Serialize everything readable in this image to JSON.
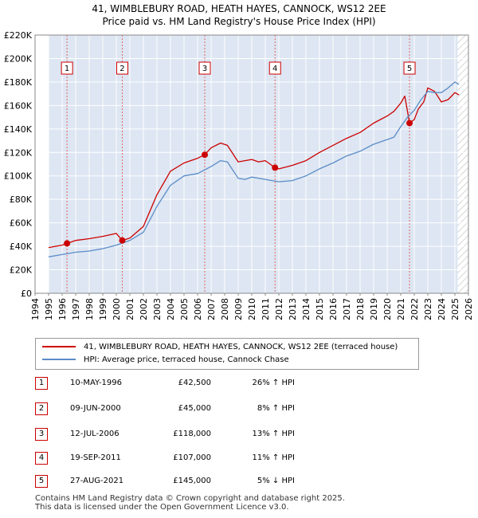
{
  "title": "41, WIMBLEBURY ROAD, HEATH HAYES, CANNOCK, WS12 2EE",
  "subtitle": "Price paid vs. HM Land Registry's House Price Index (HPI)",
  "colors": {
    "property": "#cc0000",
    "hpi": "#5b8cc8",
    "shade": "#dde6f2",
    "marker_line": "#e06666",
    "marker_box": "#cc0000"
  },
  "chart_data": {
    "type": "line",
    "ylim": [
      0,
      220000
    ],
    "xlim": [
      1994,
      2026
    ],
    "y_ticks": [
      0,
      20000,
      40000,
      60000,
      80000,
      100000,
      120000,
      140000,
      160000,
      180000,
      200000,
      220000
    ],
    "y_tick_labels": [
      "£0",
      "£20K",
      "£40K",
      "£60K",
      "£80K",
      "£100K",
      "£120K",
      "£140K",
      "£160K",
      "£180K",
      "£200K",
      "£220K"
    ],
    "x_ticks": [
      1994,
      1995,
      1996,
      1997,
      1998,
      1999,
      2000,
      2001,
      2002,
      2003,
      2004,
      2005,
      2006,
      2007,
      2008,
      2009,
      2010,
      2011,
      2012,
      2013,
      2014,
      2015,
      2016,
      2017,
      2018,
      2019,
      2020,
      2021,
      2022,
      2023,
      2024,
      2025,
      2026
    ],
    "shaded_start": 1995.0,
    "hatched_after": 2025.2,
    "series": [
      {
        "name": "41, WIMBLEBURY ROAD, HEATH HAYES, CANNOCK, WS12 2EE (terraced house)",
        "color": "#cc0000",
        "x": [
          1995.0,
          1995.5,
          1996.0,
          1996.36,
          1997.0,
          1998.0,
          1999.0,
          2000.0,
          2000.44,
          2001.0,
          2002.0,
          2003.0,
          2004.0,
          2005.0,
          2006.0,
          2006.53,
          2007.0,
          2007.7,
          2008.2,
          2009.0,
          2009.5,
          2010.0,
          2010.5,
          2011.0,
          2011.72,
          2012.0,
          2013.0,
          2014.0,
          2015.0,
          2016.0,
          2017.0,
          2018.0,
          2019.0,
          2019.5,
          2020.0,
          2020.5,
          2021.0,
          2021.3,
          2021.65,
          2022.0,
          2022.3,
          2022.7,
          2023.0,
          2023.5,
          2024.0,
          2024.5,
          2025.0,
          2025.3
        ],
        "y": [
          39000,
          40000,
          41000,
          42500,
          45000,
          46500,
          48500,
          51000,
          45000,
          47000,
          57000,
          84000,
          104000,
          111000,
          115000,
          118000,
          124000,
          128000,
          126000,
          112000,
          113000,
          114000,
          112000,
          113000,
          107000,
          106000,
          109000,
          113000,
          120000,
          126000,
          132000,
          137000,
          145000,
          148000,
          151000,
          155000,
          162000,
          168000,
          145000,
          148000,
          157000,
          163000,
          175000,
          172000,
          163000,
          165000,
          171000,
          169000
        ]
      },
      {
        "name": "HPI: Average price, terraced house, Cannock Chase",
        "color": "#5b8cc8",
        "x": [
          1995.0,
          1996.0,
          1997.0,
          1998.0,
          1999.0,
          2000.0,
          2001.0,
          2002.0,
          2003.0,
          2004.0,
          2005.0,
          2006.0,
          2007.0,
          2007.7,
          2008.2,
          2009.0,
          2009.5,
          2010.0,
          2011.0,
          2012.0,
          2013.0,
          2014.0,
          2015.0,
          2016.0,
          2017.0,
          2018.0,
          2019.0,
          2020.0,
          2020.5,
          2021.0,
          2021.5,
          2022.0,
          2022.5,
          2023.0,
          2023.5,
          2024.0,
          2024.5,
          2025.0,
          2025.3
        ],
        "y": [
          31000,
          33000,
          35000,
          36000,
          38000,
          41000,
          45000,
          52000,
          74000,
          92000,
          100000,
          102000,
          108000,
          113000,
          112000,
          98000,
          97000,
          99000,
          97000,
          95000,
          96000,
          100000,
          106000,
          111000,
          117000,
          121000,
          127000,
          131000,
          133000,
          142000,
          150000,
          156000,
          165000,
          172000,
          171000,
          171000,
          175000,
          180000,
          178000
        ]
      }
    ],
    "sales": [
      {
        "label": "1",
        "x": 1996.36,
        "y": 42500
      },
      {
        "label": "2",
        "x": 2000.44,
        "y": 45000
      },
      {
        "label": "3",
        "x": 2006.53,
        "y": 118000
      },
      {
        "label": "4",
        "x": 2011.72,
        "y": 107000
      },
      {
        "label": "5",
        "x": 2021.65,
        "y": 145000
      }
    ]
  },
  "legend": {
    "property_label": "41, WIMBLEBURY ROAD, HEATH HAYES, CANNOCK, WS12 2EE (terraced house)",
    "hpi_label": "HPI: Average price, terraced house, Cannock Chase"
  },
  "sales_table": [
    {
      "num": "1",
      "date": "10-MAY-1996",
      "price": "£42,500",
      "hpi": "26% ↑ HPI"
    },
    {
      "num": "2",
      "date": "09-JUN-2000",
      "price": "£45,000",
      "hpi": "8% ↑ HPI"
    },
    {
      "num": "3",
      "date": "12-JUL-2006",
      "price": "£118,000",
      "hpi": "13% ↑ HPI"
    },
    {
      "num": "4",
      "date": "19-SEP-2011",
      "price": "£107,000",
      "hpi": "11% ↑ HPI"
    },
    {
      "num": "5",
      "date": "27-AUG-2021",
      "price": "£145,000",
      "hpi": "5% ↓ HPI"
    }
  ],
  "footer": {
    "line1": "Contains HM Land Registry data © Crown copyright and database right 2025.",
    "line2": "This data is licensed under the Open Government Licence v3.0."
  }
}
